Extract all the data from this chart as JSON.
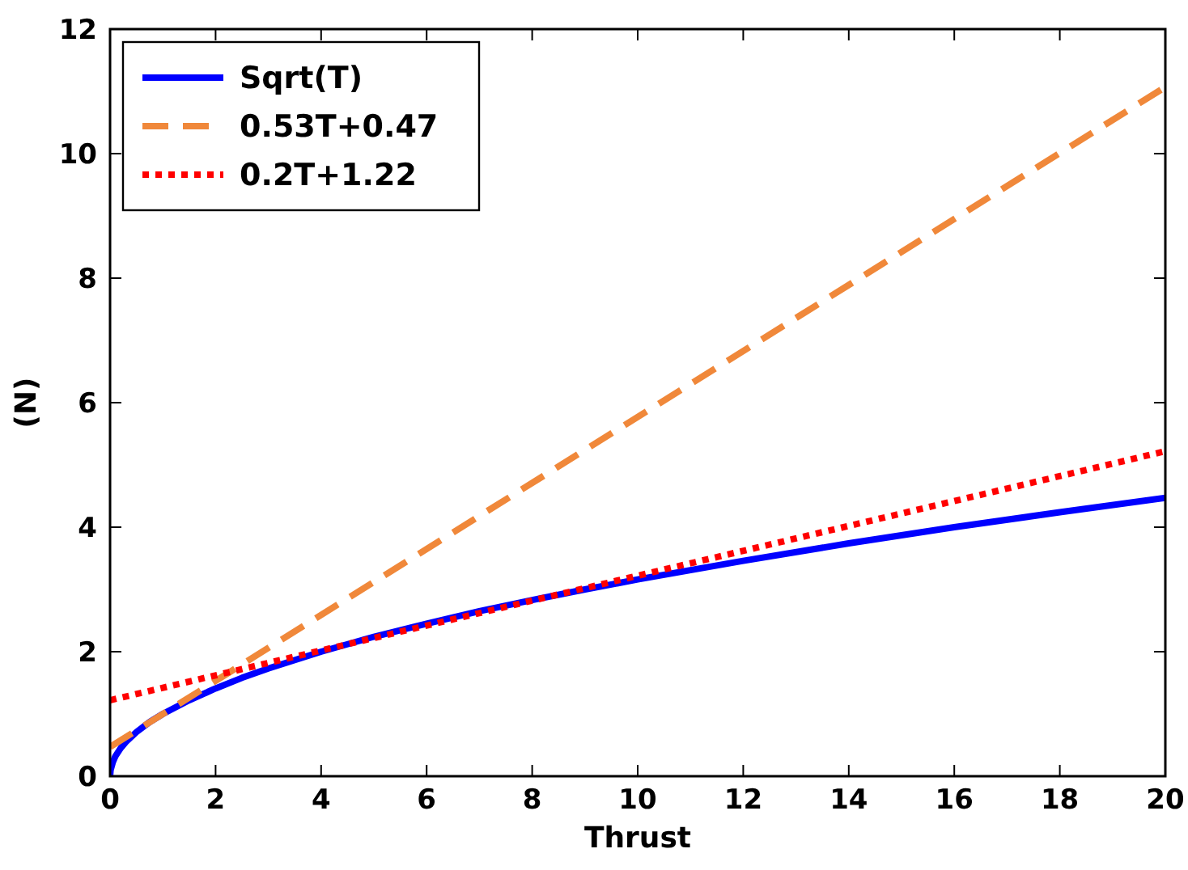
{
  "chart_data": {
    "type": "line",
    "xlabel": "Thrust",
    "ylabel": "(N)",
    "xlim": [
      0,
      20
    ],
    "ylim": [
      0,
      12
    ],
    "xticks": [
      0,
      2,
      4,
      6,
      8,
      10,
      12,
      14,
      16,
      18,
      20
    ],
    "yticks": [
      0,
      2,
      4,
      6,
      8,
      10,
      12
    ],
    "grid": false,
    "legend": "top left",
    "series": [
      {
        "name": "Sqrt(T)",
        "color": "#0000ff",
        "line_style": "solid",
        "x": [
          0,
          0.01,
          0.05,
          0.1,
          0.2,
          0.3,
          0.5,
          0.75,
          1,
          1.5,
          2,
          2.5,
          3,
          4,
          5,
          6,
          7,
          8,
          9,
          10,
          12,
          14,
          16,
          18,
          20
        ],
        "values": [
          0,
          0.1,
          0.22,
          0.32,
          0.45,
          0.55,
          0.71,
          0.87,
          1,
          1.22,
          1.41,
          1.58,
          1.73,
          2,
          2.24,
          2.45,
          2.65,
          2.83,
          3,
          3.16,
          3.46,
          3.74,
          4,
          4.24,
          4.47
        ]
      },
      {
        "name": "0.53T+0.47",
        "color": "#f0883a",
        "line_style": "dashed",
        "x": [
          0,
          20
        ],
        "values": [
          0.47,
          11.07
        ]
      },
      {
        "name": "0.2T+1.22",
        "color": "#ff0000",
        "line_style": "dotted",
        "x": [
          0,
          20
        ],
        "values": [
          1.22,
          5.22
        ]
      }
    ]
  }
}
